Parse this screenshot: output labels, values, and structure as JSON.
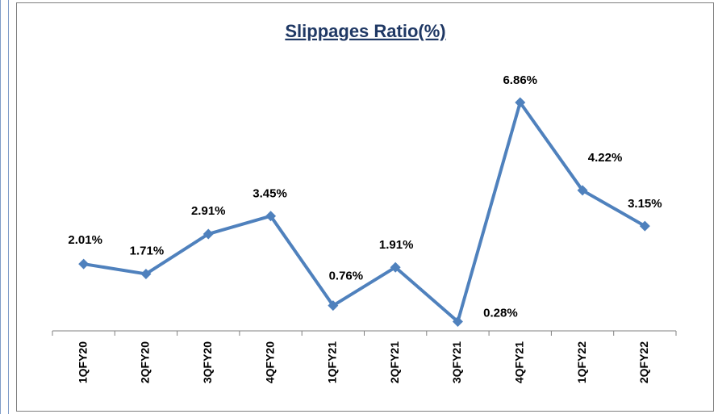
{
  "chart_data": {
    "type": "line",
    "title": "Slippages Ratio(%)",
    "categories": [
      "1QFY20",
      "2QFY20",
      "3QFY20",
      "4QFY20",
      "1QFY21",
      "2QFY21",
      "3QFY21",
      "4QFY21",
      "1QFY22",
      "2QFY22"
    ],
    "series": [
      {
        "name": "Slippages Ratio",
        "color": "#4f81bd",
        "values": [
          2.01,
          1.71,
          2.91,
          3.45,
          0.76,
          1.91,
          0.28,
          6.86,
          4.22,
          3.15
        ],
        "value_labels": [
          "2.01%",
          "1.71%",
          "2.91%",
          "3.45%",
          "0.76%",
          "1.91%",
          "0.28%",
          "6.86%",
          "4.22%",
          "3.15%"
        ]
      }
    ],
    "ylim": [
      0,
      8
    ]
  }
}
